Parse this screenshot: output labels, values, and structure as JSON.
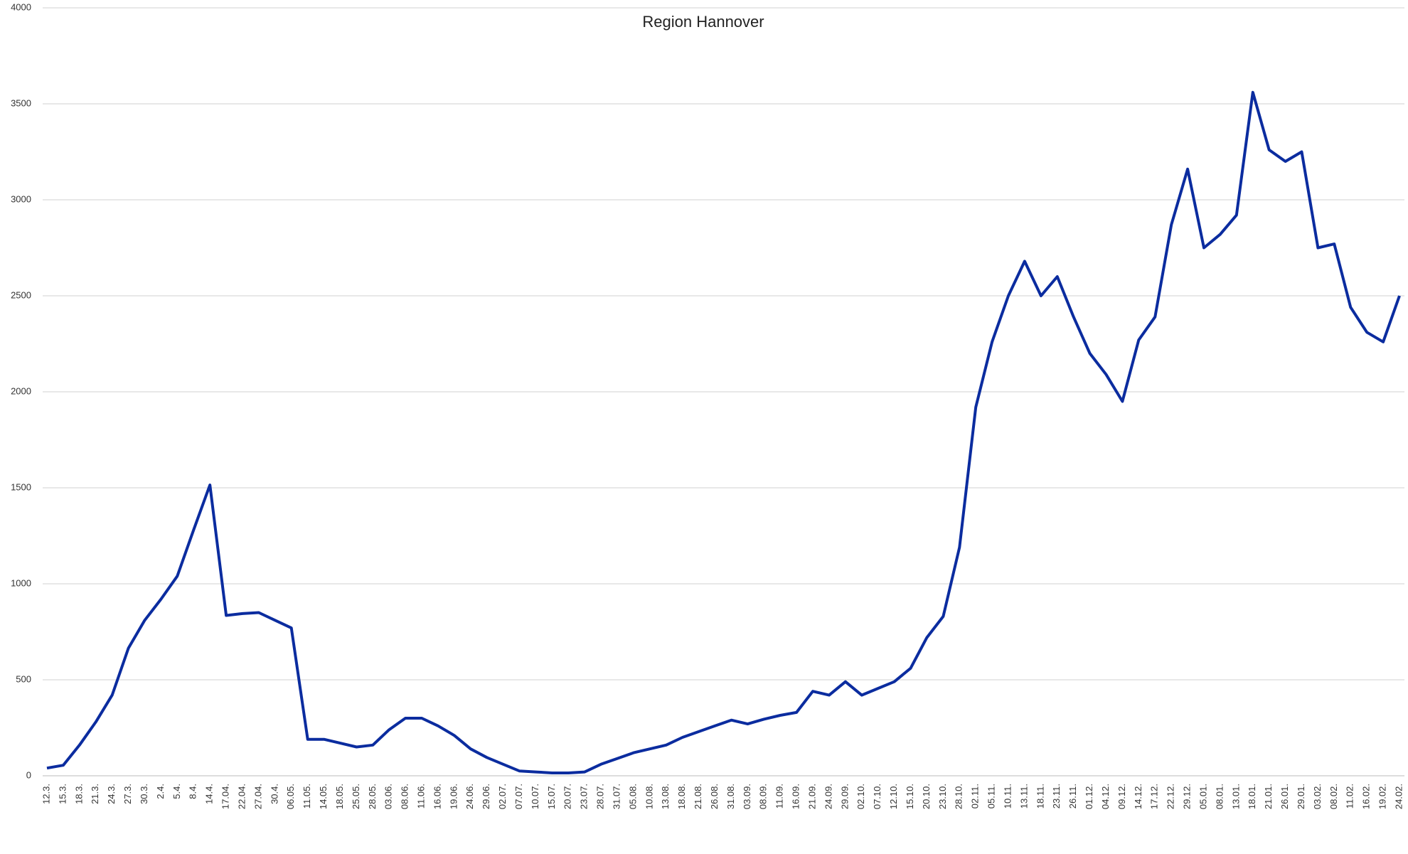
{
  "chart_data": {
    "type": "line",
    "title": "Region Hannover",
    "categories": [
      "12.3.",
      "15.3.",
      "18.3.",
      "21.3.",
      "24.3.",
      "27.3.",
      "30.3.",
      "2.4.",
      "5.4.",
      "8.4.",
      "14.4.",
      "17.04.",
      "22.04.",
      "27.04.",
      "30.4.",
      "06.05.",
      "11.05.",
      "14.05.",
      "18.05.",
      "25.05.",
      "28.05.",
      "03.06.",
      "08.06.",
      "11.06.",
      "16.06.",
      "19.06.",
      "24.06.",
      "29.06.",
      "02.07.",
      "07.07.",
      "10.07.",
      "15.07.",
      "20.07.",
      "23.07.",
      "28.07.",
      "31.07.",
      "05.08.",
      "10.08.",
      "13.08.",
      "18.08.",
      "21.08.",
      "26.08.",
      "31.08.",
      "03.09.",
      "08.09.",
      "11.09.",
      "16.09.",
      "21.09.",
      "24.09.",
      "29.09.",
      "02.10.",
      "07.10.",
      "12.10.",
      "15.10.",
      "20.10.",
      "23.10.",
      "28.10.",
      "02.11.",
      "05.11.",
      "10.11.",
      "13.11.",
      "18.11.",
      "23.11.",
      "26.11.",
      "01.12.",
      "04.12.",
      "09.12.",
      "14.12.",
      "17.12.",
      "22.12.",
      "29.12.",
      "05.01.",
      "08.01.",
      "13.01.",
      "18.01.",
      "21.01.",
      "26.01.",
      "29.01.",
      "03.02.",
      "08.02.",
      "11.02.",
      "16.02.",
      "19.02.",
      "24.02."
    ],
    "series": [
      {
        "color": "#0b2c9f",
        "values": [
          40,
          55,
          160,
          280,
          420,
          665,
          810,
          920,
          1040,
          1280,
          1515,
          835,
          845,
          850,
          810,
          770,
          190,
          190,
          170,
          150,
          160,
          240,
          300,
          300,
          260,
          210,
          140,
          95,
          60,
          25,
          20,
          15,
          15,
          20,
          60,
          90,
          120,
          140,
          160,
          200,
          230,
          260,
          290,
          270,
          295,
          315,
          330,
          440,
          420,
          490,
          420,
          455,
          490,
          560,
          720,
          830,
          1190,
          1920,
          2260,
          2500,
          2680,
          2500,
          2600,
          2390,
          2200,
          2090,
          1950,
          2270,
          2390,
          2870,
          3160,
          2750,
          2820,
          2920,
          3560,
          3260,
          3200,
          3250,
          2750,
          2770,
          2440,
          2310,
          2260,
          2500
        ]
      }
    ],
    "ylim": [
      0,
      4000
    ],
    "yticks": [
      0,
      500,
      1000,
      1500,
      2000,
      2500,
      3000,
      3500,
      4000
    ],
    "grid": true
  }
}
